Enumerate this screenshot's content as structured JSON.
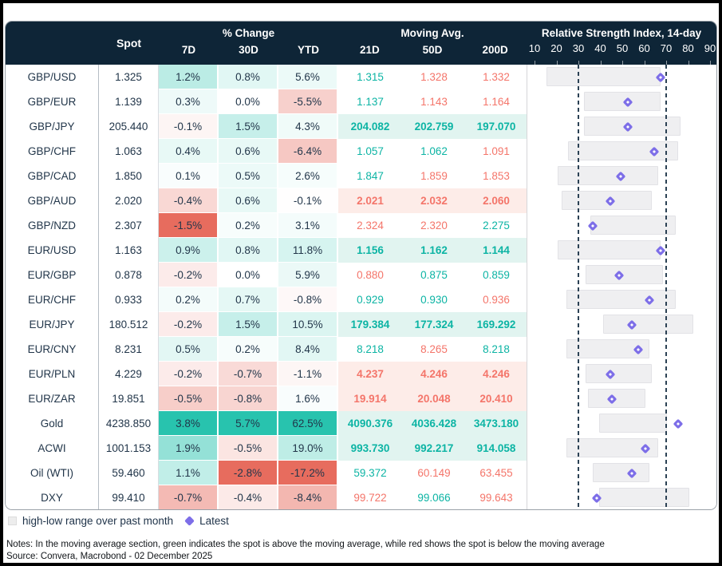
{
  "header": {
    "spot": "Spot",
    "pct_change_group": "% Change",
    "pct_cols": [
      "7D",
      "30D",
      "YTD"
    ],
    "ma_group": "Moving Avg.",
    "ma_cols": [
      "21D",
      "50D",
      "200D"
    ],
    "rsi_title": "Relative Strength Index, 14-day"
  },
  "rows": [
    {
      "name": "GBP/USD",
      "spot": "1.325",
      "pct": [
        1.2,
        0.8,
        5.6
      ],
      "ma": [
        {
          "v": "1.315",
          "dir": "above"
        },
        {
          "v": "1.328",
          "dir": "below"
        },
        {
          "v": "1.332",
          "dir": "below"
        }
      ]
    },
    {
      "name": "GBP/EUR",
      "spot": "1.139",
      "pct": [
        0.3,
        0.0,
        -5.5
      ],
      "ma": [
        {
          "v": "1.137",
          "dir": "above"
        },
        {
          "v": "1.143",
          "dir": "below"
        },
        {
          "v": "1.164",
          "dir": "below"
        }
      ]
    },
    {
      "name": "GBP/JPY",
      "spot": "205.440",
      "pct": [
        -0.1,
        1.5,
        4.3
      ],
      "ma": [
        {
          "v": "204.082",
          "dir": "above"
        },
        {
          "v": "202.759",
          "dir": "above"
        },
        {
          "v": "197.070",
          "dir": "above"
        }
      ]
    },
    {
      "name": "GBP/CHF",
      "spot": "1.063",
      "pct": [
        0.4,
        0.6,
        -6.4
      ],
      "ma": [
        {
          "v": "1.057",
          "dir": "above"
        },
        {
          "v": "1.062",
          "dir": "above"
        },
        {
          "v": "1.091",
          "dir": "below"
        }
      ]
    },
    {
      "name": "GBP/CAD",
      "spot": "1.850",
      "pct": [
        0.1,
        0.5,
        2.6
      ],
      "ma": [
        {
          "v": "1.847",
          "dir": "above"
        },
        {
          "v": "1.859",
          "dir": "below"
        },
        {
          "v": "1.853",
          "dir": "below"
        }
      ]
    },
    {
      "name": "GBP/AUD",
      "spot": "2.020",
      "pct": [
        -0.4,
        0.6,
        -0.1
      ],
      "ma": [
        {
          "v": "2.021",
          "dir": "below"
        },
        {
          "v": "2.032",
          "dir": "below"
        },
        {
          "v": "2.060",
          "dir": "below"
        }
      ]
    },
    {
      "name": "GBP/NZD",
      "spot": "2.307",
      "pct": [
        -1.5,
        0.2,
        3.1
      ],
      "ma": [
        {
          "v": "2.324",
          "dir": "below"
        },
        {
          "v": "2.320",
          "dir": "below"
        },
        {
          "v": "2.275",
          "dir": "above"
        }
      ]
    },
    {
      "name": "EUR/USD",
      "spot": "1.163",
      "pct": [
        0.9,
        0.8,
        11.8
      ],
      "ma": [
        {
          "v": "1.156",
          "dir": "above"
        },
        {
          "v": "1.162",
          "dir": "above"
        },
        {
          "v": "1.144",
          "dir": "above"
        }
      ]
    },
    {
      "name": "EUR/GBP",
      "spot": "0.878",
      "pct": [
        -0.2,
        0.0,
        5.9
      ],
      "ma": [
        {
          "v": "0.880",
          "dir": "below"
        },
        {
          "v": "0.875",
          "dir": "above"
        },
        {
          "v": "0.859",
          "dir": "above"
        }
      ]
    },
    {
      "name": "EUR/CHF",
      "spot": "0.933",
      "pct": [
        0.2,
        0.7,
        -0.8
      ],
      "ma": [
        {
          "v": "0.929",
          "dir": "above"
        },
        {
          "v": "0.930",
          "dir": "above"
        },
        {
          "v": "0.936",
          "dir": "below"
        }
      ]
    },
    {
      "name": "EUR/JPY",
      "spot": "180.512",
      "pct": [
        -0.2,
        1.5,
        10.5
      ],
      "ma": [
        {
          "v": "179.384",
          "dir": "above"
        },
        {
          "v": "177.324",
          "dir": "above"
        },
        {
          "v": "169.292",
          "dir": "above"
        }
      ]
    },
    {
      "name": "EUR/CNY",
      "spot": "8.231",
      "pct": [
        0.5,
        0.2,
        8.4
      ],
      "ma": [
        {
          "v": "8.218",
          "dir": "above"
        },
        {
          "v": "8.265",
          "dir": "below"
        },
        {
          "v": "8.218",
          "dir": "above"
        }
      ]
    },
    {
      "name": "EUR/PLN",
      "spot": "4.229",
      "pct": [
        -0.2,
        -0.7,
        -1.1
      ],
      "ma": [
        {
          "v": "4.237",
          "dir": "below"
        },
        {
          "v": "4.246",
          "dir": "below"
        },
        {
          "v": "4.246",
          "dir": "below"
        }
      ]
    },
    {
      "name": "EUR/ZAR",
      "spot": "19.851",
      "pct": [
        -0.5,
        -0.8,
        1.6
      ],
      "ma": [
        {
          "v": "19.914",
          "dir": "below"
        },
        {
          "v": "20.048",
          "dir": "below"
        },
        {
          "v": "20.410",
          "dir": "below"
        }
      ]
    },
    {
      "name": "Gold",
      "spot": "4238.850",
      "pct": [
        3.8,
        5.7,
        62.5
      ],
      "ma": [
        {
          "v": "4090.376",
          "dir": "above"
        },
        {
          "v": "4036.428",
          "dir": "above"
        },
        {
          "v": "3473.180",
          "dir": "above"
        }
      ]
    },
    {
      "name": "ACWI",
      "spot": "1001.153",
      "pct": [
        1.9,
        -0.5,
        19.0
      ],
      "ma": [
        {
          "v": "993.730",
          "dir": "above"
        },
        {
          "v": "992.217",
          "dir": "above"
        },
        {
          "v": "914.058",
          "dir": "above"
        }
      ]
    },
    {
      "name": "Oil (WTI)",
      "spot": "59.460",
      "pct": [
        1.1,
        -2.8,
        -17.2
      ],
      "ma": [
        {
          "v": "59.372",
          "dir": "above"
        },
        {
          "v": "60.149",
          "dir": "below"
        },
        {
          "v": "63.455",
          "dir": "below"
        }
      ]
    },
    {
      "name": "DXY",
      "spot": "99.410",
      "pct": [
        -0.7,
        -0.4,
        -8.4
      ],
      "ma": [
        {
          "v": "99.722",
          "dir": "below"
        },
        {
          "v": "99.066",
          "dir": "above"
        },
        {
          "v": "99.643",
          "dir": "below"
        }
      ]
    }
  ],
  "chart_data": {
    "type": "bar",
    "title": "Relative Strength Index, 14-day",
    "xlabel": "",
    "ylabel": "",
    "categories": [
      "GBP/USD",
      "GBP/EUR",
      "GBP/JPY",
      "GBP/CHF",
      "GBP/CAD",
      "GBP/AUD",
      "GBP/NZD",
      "EUR/USD",
      "EUR/GBP",
      "EUR/CHF",
      "EUR/JPY",
      "EUR/CNY",
      "EUR/PLN",
      "EUR/ZAR",
      "Gold",
      "ACWI",
      "Oil (WTI)",
      "DXY"
    ],
    "series": [
      {
        "name": "high-low range over past month (low)",
        "values": [
          15,
          32,
          32,
          25,
          20,
          22,
          35,
          20,
          33,
          24,
          41,
          24,
          33,
          34,
          39,
          24,
          36,
          39
        ]
      },
      {
        "name": "high-low range over past month (high)",
        "values": [
          67,
          67,
          76,
          75,
          66,
          63,
          74,
          67,
          68,
          74,
          82,
          62,
          63,
          60,
          70,
          66,
          62,
          80
        ]
      },
      {
        "name": "Latest",
        "values": [
          67,
          52,
          52,
          64,
          49,
          44,
          36,
          67,
          48,
          62,
          54,
          57,
          44,
          45,
          75,
          60,
          54,
          38
        ]
      }
    ],
    "xlim": [
      10,
      90
    ],
    "x_ticks": [
      10,
      20,
      30,
      40,
      50,
      60,
      70,
      80,
      90
    ],
    "thresholds": [
      30,
      70
    ],
    "grid": false,
    "legend_position": "bottom"
  },
  "legend": {
    "range_label": "high-low range over past month",
    "latest_label": "Latest"
  },
  "notes": "Notes: In the moving average section, green indicates the spot is above the moving average, while red shows the spot is below the moving average",
  "source": "Source: Convera, Macrobond - 02 December 2025",
  "colors": {
    "header_bg": "#0e2537",
    "teal_max": "#28c3ae",
    "salmon_max": "#e76c5e",
    "ma_green": "#0cb4a4",
    "ma_red": "#f4756a",
    "band_green": "#e1f4f0",
    "band_red": "#fdece8",
    "bar_fill": "#efeff1",
    "diamond": "#7d6ee8",
    "threshold_line": "#2b4154"
  }
}
